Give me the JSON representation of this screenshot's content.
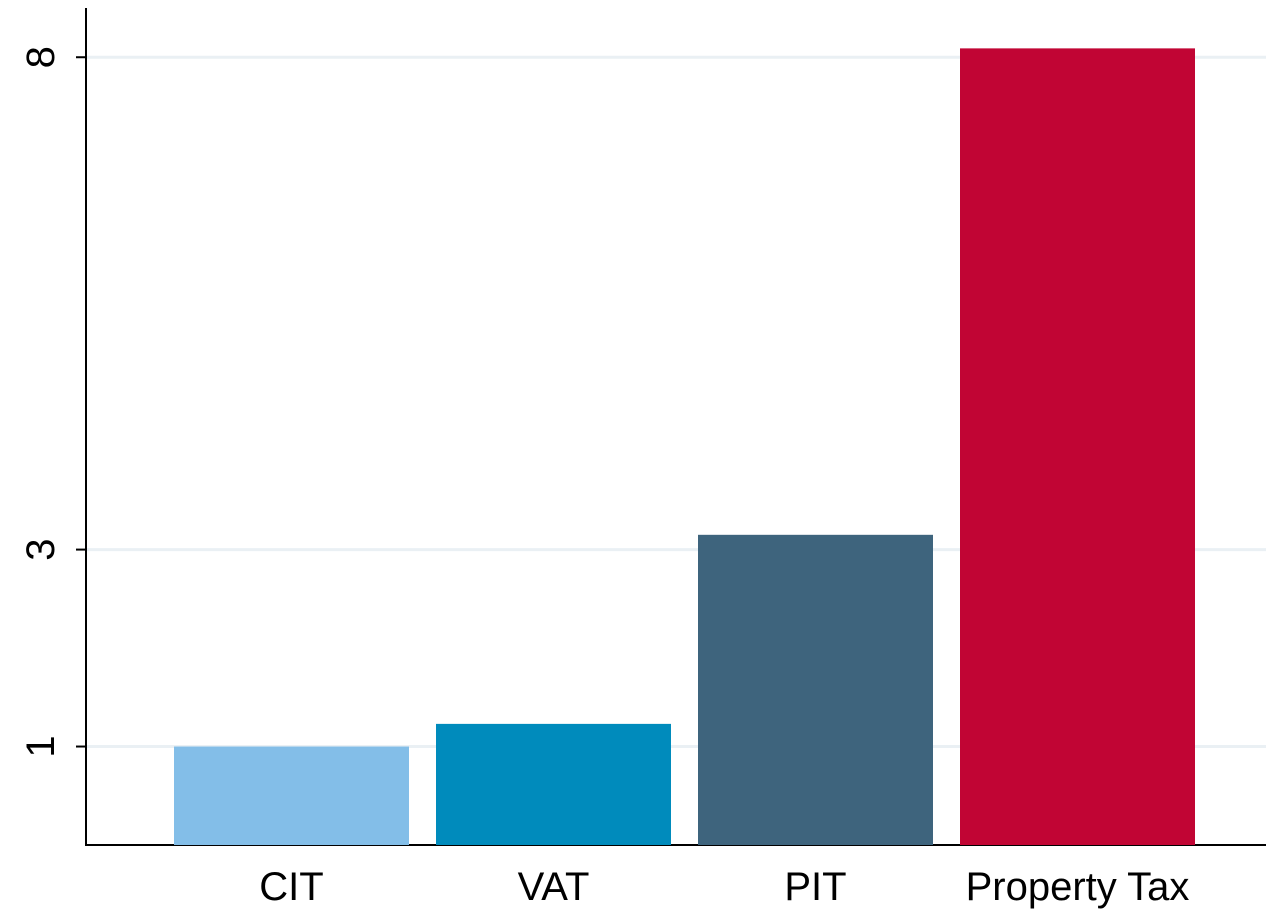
{
  "chart_data": {
    "type": "bar",
    "categories": [
      "CIT",
      "VAT",
      "PIT",
      "Property Tax"
    ],
    "values": [
      1,
      1.23,
      3.15,
      8.09
    ],
    "colors": [
      "#83bee8",
      "#008bbc",
      "#3e647d",
      "#c10534"
    ],
    "ylim": [
      0,
      8.5
    ],
    "yticks": [
      1,
      3,
      8
    ],
    "grid": true
  }
}
